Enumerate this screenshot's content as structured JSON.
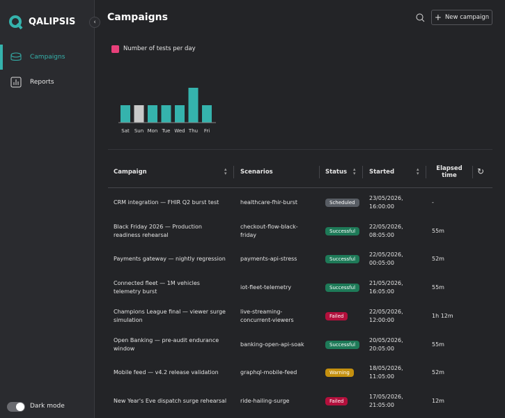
{
  "brand": "QALIPSIS",
  "nav": [
    {
      "label": "Campaigns",
      "active": true
    },
    {
      "label": "Reports",
      "active": false
    }
  ],
  "dark_mode": "Dark mode",
  "header": {
    "title": "Campaigns",
    "button": "New campaign"
  },
  "chart_data": {
    "type": "bar",
    "title": "Number of tests per day",
    "categories": [
      "Sat",
      "Sun",
      "Mon",
      "Tue",
      "Wed",
      "Thu",
      "Fri"
    ],
    "values": [
      1,
      1,
      1,
      1,
      1,
      2,
      1
    ],
    "colors": [
      "#35b3ad",
      "#c9c9c9",
      "#35b3ad",
      "#35b3ad",
      "#35b3ad",
      "#35b3ad",
      "#35b3ad"
    ],
    "ylim": [
      0,
      2
    ]
  },
  "table": {
    "columns": [
      "Campaign",
      "Scenarios",
      "Status",
      "Started",
      "Elapsed time"
    ],
    "rows": [
      [
        "CRM integration — FHIR Q2 burst test",
        "healthcare-fhir-burst",
        "Scheduled",
        "23/05/2026, 16:00:00",
        "-"
      ],
      [
        "Black Friday 2026 — Production readiness rehearsal",
        "checkout-flow-black-friday",
        "Successful",
        "22/05/2026, 08:05:00",
        "55m"
      ],
      [
        "Payments gateway — nightly regression",
        "payments-api-stress",
        "Successful",
        "22/05/2026, 00:05:00",
        "52m"
      ],
      [
        "Connected fleet — 1M vehicles telemetry burst",
        "iot-fleet-telemetry",
        "Successful",
        "21/05/2026, 16:05:00",
        "55m"
      ],
      [
        "Champions League final — viewer surge simulation",
        "live-streaming-concurrent-viewers",
        "Failed",
        "22/05/2026, 12:00:00",
        "1h 12m"
      ],
      [
        "Open Banking — pre-audit endurance window",
        "banking-open-api-soak",
        "Successful",
        "20/05/2026, 20:05:00",
        "55m"
      ],
      [
        "Mobile feed — v4.2 release validation",
        "graphql-mobile-feed",
        "Warning",
        "18/05/2026, 11:05:00",
        "52m"
      ],
      [
        "New Year's Eve dispatch surge rehearsal",
        "ride-hailing-surge",
        "Failed",
        "17/05/2026, 21:05:00",
        "12m"
      ]
    ]
  }
}
